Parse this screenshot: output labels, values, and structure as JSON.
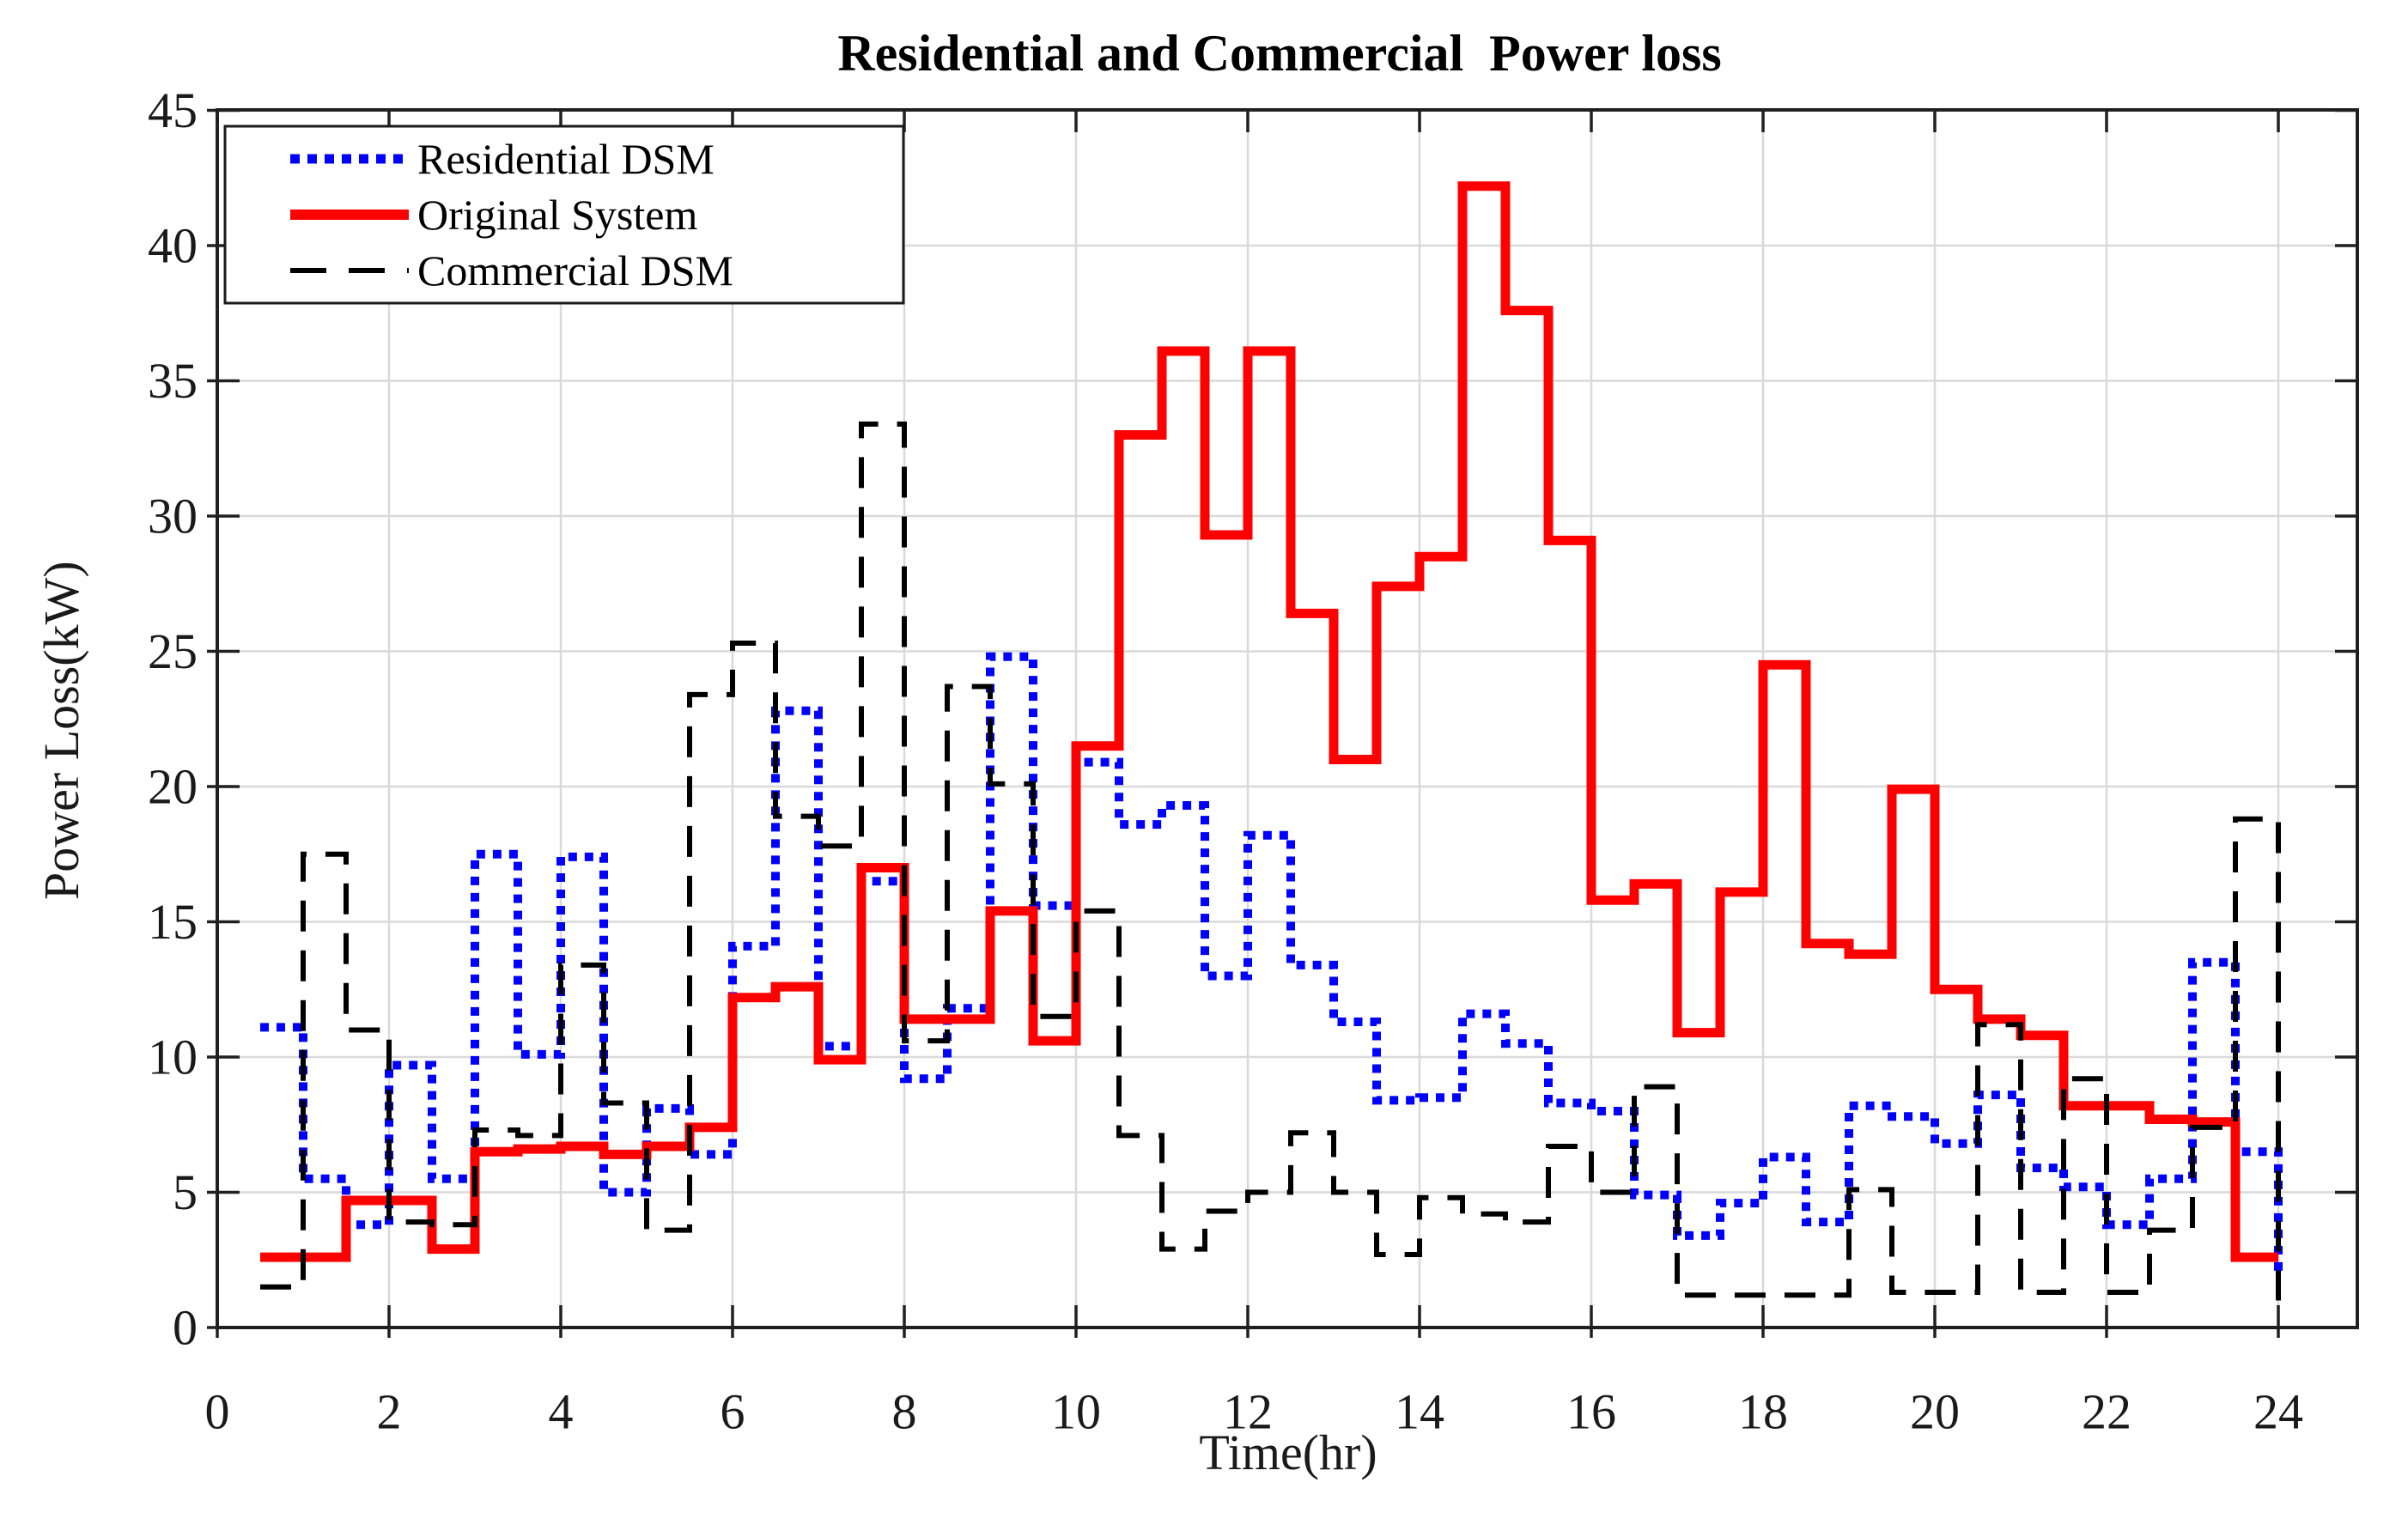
{
  "title": "Residential and Commercial  Power loss",
  "chart_data": {
    "type": "line",
    "subtype": "stairs-post",
    "title": "Residential and Commercial  Power loss",
    "xlabel": "Time(hr)",
    "ylabel": "Power Loss(kW)",
    "xlim": [
      0,
      24.92
    ],
    "ylim": [
      0,
      45
    ],
    "x_ticks": [
      0,
      2,
      4,
      6,
      8,
      10,
      12,
      14,
      16,
      18,
      20,
      22,
      24
    ],
    "y_ticks": [
      0,
      5,
      10,
      15,
      20,
      25,
      30,
      35,
      40,
      45
    ],
    "grid": true,
    "legend_position": "top-left",
    "x_start": 0.5,
    "x_step": 0.5,
    "x_end": 24,
    "colors": {
      "residential": "#0000FF",
      "original": "#FF0000",
      "commercial": "#000000",
      "grid": "#D9D9D9",
      "axis": "#202020"
    },
    "series": [
      {
        "name": "Residential DSM",
        "color": "#0000FF",
        "style": "dotted",
        "values": [
          11.1,
          5.5,
          3.8,
          9.7,
          5.5,
          17.5,
          10.1,
          17.4,
          5.0,
          8.1,
          6.4,
          14.1,
          22.8,
          10.4,
          16.5,
          9.2,
          11.8,
          24.8,
          15.6,
          20.9,
          18.6,
          19.3,
          13.0,
          18.2,
          13.4,
          11.3,
          8.4,
          8.5,
          11.6,
          10.5,
          8.3,
          8.0,
          4.9,
          3.4,
          4.6,
          6.3,
          3.9,
          8.2,
          7.8,
          6.8,
          8.6,
          5.9,
          5.2,
          3.8,
          5.5,
          13.5,
          6.5
        ],
        "end_value": 1.9
      },
      {
        "name": "Original System",
        "color": "#FF0000",
        "style": "solid",
        "values": [
          2.6,
          2.6,
          4.7,
          4.7,
          2.9,
          6.5,
          6.6,
          6.7,
          6.4,
          6.7,
          7.4,
          12.2,
          12.6,
          9.9,
          17.0,
          11.4,
          11.4,
          15.4,
          10.6,
          21.5,
          33.0,
          36.1,
          29.3,
          36.1,
          26.4,
          21.0,
          27.4,
          28.5,
          42.2,
          37.6,
          29.1,
          15.8,
          16.4,
          10.9,
          16.1,
          24.5,
          14.2,
          13.8,
          19.9,
          12.5,
          11.4,
          10.8,
          8.2,
          8.2,
          7.7,
          7.6,
          2.6
        ],
        "end_value": 2.6
      },
      {
        "name": "Commercial DSM",
        "color": "#000000",
        "style": "dashed",
        "values": [
          1.5,
          17.5,
          11.0,
          3.9,
          3.8,
          7.3,
          7.1,
          13.4,
          8.3,
          3.6,
          23.4,
          25.3,
          18.9,
          17.8,
          33.4,
          10.6,
          23.7,
          20.1,
          11.5,
          15.4,
          7.1,
          2.9,
          4.3,
          5.0,
          7.2,
          5.0,
          2.7,
          4.8,
          4.2,
          3.9,
          6.7,
          5.0,
          8.9,
          1.2,
          1.2,
          1.2,
          1.2,
          5.1,
          1.3,
          1.3,
          11.2,
          1.3,
          9.2,
          1.3,
          3.6,
          7.4,
          18.8
        ],
        "end_value": 1.0
      }
    ]
  }
}
